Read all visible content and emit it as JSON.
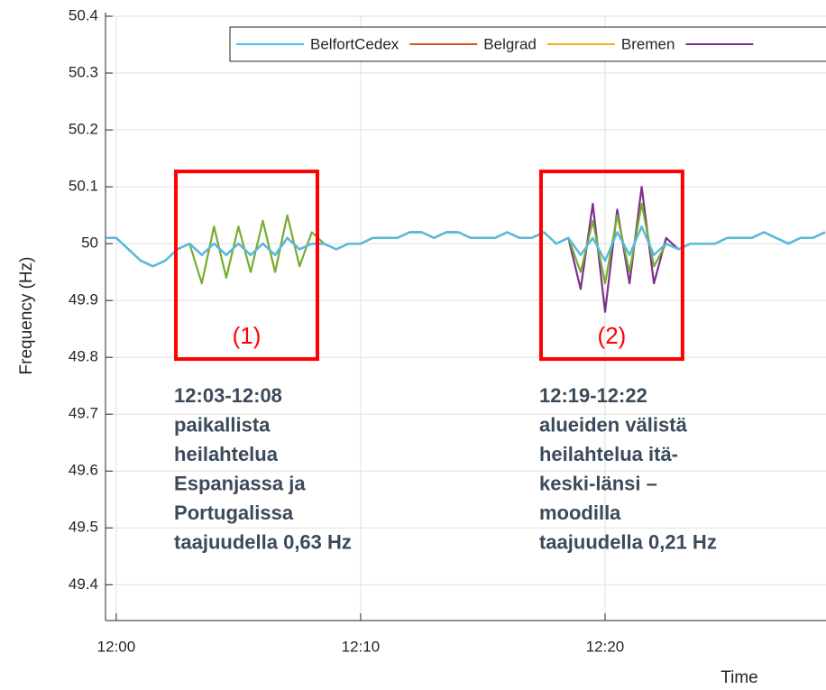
{
  "chart_data": {
    "type": "line",
    "ylabel": "Frequency (Hz)",
    "xlabel": "Time",
    "x": [
      -0.5,
      0,
      0.5,
      1,
      1.5,
      2,
      2.5,
      3,
      3.5,
      4,
      4.5,
      5,
      5.5,
      6,
      6.5,
      7,
      7.5,
      8,
      8.5,
      9,
      9.5,
      10,
      10.5,
      11,
      11.5,
      12,
      12.5,
      13,
      13.5,
      14,
      14.5,
      15,
      15.5,
      16,
      16.5,
      17,
      17.5,
      18,
      18.5,
      19,
      19.5,
      20,
      20.5,
      21,
      21.5,
      22,
      22.5,
      23,
      23.5,
      24,
      24.5,
      25,
      25.5,
      26,
      26.5,
      27,
      27.5,
      28,
      28.5,
      29
    ],
    "xlim": [
      -0.44,
      29.04
    ],
    "xticks": [
      {
        "value": 0,
        "label": "12:00"
      },
      {
        "value": 10,
        "label": "12:10"
      },
      {
        "value": 20,
        "label": "12:20"
      }
    ],
    "ylim": [
      49.337,
      50.4
    ],
    "yticks": [
      49.4,
      49.5,
      49.6,
      49.7,
      49.8,
      49.9,
      50,
      50.1,
      50.2,
      50.3,
      50.4
    ],
    "grid": true,
    "legend_order": [
      0,
      4,
      3,
      2
    ],
    "series": [
      {
        "name": "BelfortCedex",
        "color": "#4dbeee",
        "values": [
          50.01,
          50.01,
          49.99,
          49.97,
          49.96,
          49.97,
          49.99,
          50.0,
          49.98,
          50.0,
          49.98,
          50.0,
          49.98,
          50.0,
          49.98,
          50.01,
          49.99,
          50.0,
          50.0,
          49.99,
          50.0,
          50.0,
          50.01,
          50.01,
          50.01,
          50.02,
          50.02,
          50.01,
          50.02,
          50.02,
          50.01,
          50.01,
          50.01,
          50.02,
          50.01,
          50.01,
          50.02,
          50.0,
          50.01,
          49.98,
          50.01,
          49.97,
          50.02,
          49.98,
          50.03,
          49.98,
          50.0,
          49.99,
          50.0,
          50.0,
          50.0,
          50.01,
          50.01,
          50.01,
          50.02,
          50.01,
          50.0,
          50.01,
          50.01,
          50.02
        ]
      },
      {
        "name": null,
        "color": "#77ac30",
        "values": [
          50.01,
          50.01,
          49.99,
          49.97,
          49.96,
          49.97,
          49.99,
          50.0,
          49.93,
          50.03,
          49.94,
          50.03,
          49.95,
          50.04,
          49.95,
          50.05,
          49.96,
          50.02,
          50.0,
          49.99,
          50.0,
          50.0,
          50.01,
          50.01,
          50.01,
          50.02,
          50.02,
          50.01,
          50.02,
          50.02,
          50.01,
          50.01,
          50.01,
          50.02,
          50.01,
          50.01,
          50.02,
          50.0,
          50.01,
          49.95,
          50.04,
          49.93,
          50.05,
          49.95,
          50.07,
          49.96,
          50.0,
          49.99,
          50.0,
          50.0,
          50.0,
          50.01,
          50.01,
          50.01,
          50.02,
          50.01,
          50.0,
          50.01,
          50.01,
          50.02
        ]
      },
      {
        "name": null,
        "color": "#7e2f8e",
        "values": [
          50.01,
          50.01,
          49.99,
          49.97,
          49.96,
          49.97,
          49.99,
          50.0,
          49.98,
          50.0,
          49.98,
          50.0,
          49.98,
          50.0,
          49.98,
          50.01,
          49.99,
          50.0,
          50.0,
          49.99,
          50.0,
          50.0,
          50.01,
          50.01,
          50.01,
          50.02,
          50.02,
          50.01,
          50.02,
          50.02,
          50.01,
          50.01,
          50.01,
          50.02,
          50.01,
          50.01,
          50.02,
          50.0,
          50.01,
          49.92,
          50.07,
          49.88,
          50.06,
          49.93,
          50.1,
          49.93,
          50.01,
          49.99,
          50.0,
          50.0,
          50.0,
          50.01,
          50.01,
          50.01,
          50.02,
          50.01,
          50.0,
          50.01,
          50.01,
          50.02
        ]
      },
      {
        "name": "Bremen",
        "color": "#edb120",
        "values": [
          50.01,
          50.01,
          49.99,
          49.97,
          49.96,
          49.97,
          49.99,
          50.0,
          49.98,
          50.0,
          49.98,
          50.0,
          49.98,
          50.0,
          49.98,
          50.01,
          49.99,
          50.0,
          50.0,
          49.99,
          50.0,
          50.0,
          50.01,
          50.01,
          50.01,
          50.02,
          50.02,
          50.01,
          50.02,
          50.02,
          50.01,
          50.01,
          50.01,
          50.02,
          50.01,
          50.01,
          50.02,
          50.0,
          50.01,
          49.98,
          50.01,
          49.97,
          50.02,
          49.98,
          50.03,
          49.98,
          50.0,
          49.99,
          50.0,
          50.0,
          50.0,
          50.01,
          50.01,
          50.01,
          50.02,
          50.01,
          50.0,
          50.01,
          50.01,
          50.02
        ]
      },
      {
        "name": "Belgrad",
        "color": "#d95319",
        "values": [
          50.01,
          50.01,
          49.99,
          49.97,
          49.96,
          49.97,
          49.99,
          50.0,
          49.98,
          50.0,
          49.98,
          50.0,
          49.98,
          50.0,
          49.98,
          50.01,
          49.99,
          50.0,
          50.0,
          49.99,
          50.0,
          50.0,
          50.01,
          50.01,
          50.01,
          50.02,
          50.02,
          50.01,
          50.02,
          50.02,
          50.01,
          50.01,
          50.01,
          50.02,
          50.01,
          50.01,
          50.02,
          50.0,
          50.01,
          49.98,
          50.01,
          49.97,
          50.02,
          49.98,
          50.03,
          49.98,
          50.0,
          49.99,
          50.0,
          50.0,
          50.0,
          50.01,
          50.01,
          50.01,
          50.02,
          50.01,
          50.0,
          50.01,
          50.01,
          50.02
        ]
      }
    ],
    "annotations": [
      {
        "label": "(1)",
        "color": "#ff0000",
        "xrange": [
          2.44,
          8.23
        ],
        "yrange": [
          49.797,
          50.127
        ],
        "text": [
          "12:03-12:08",
          "paikallista",
          "heilahtelua",
          "Espanjassa ja",
          "Portugalissa",
          "taajuudella 0,63 Hz"
        ]
      },
      {
        "label": "(2)",
        "color": "#ff0000",
        "xrange": [
          17.38,
          23.17
        ],
        "yrange": [
          49.797,
          50.127
        ],
        "text": [
          "12:19-12:22",
          "alueiden välistä",
          "heilahtelua itä-",
          "keski-länsi –",
          "moodilla",
          "taajuudella 0,21 Hz"
        ]
      }
    ]
  }
}
